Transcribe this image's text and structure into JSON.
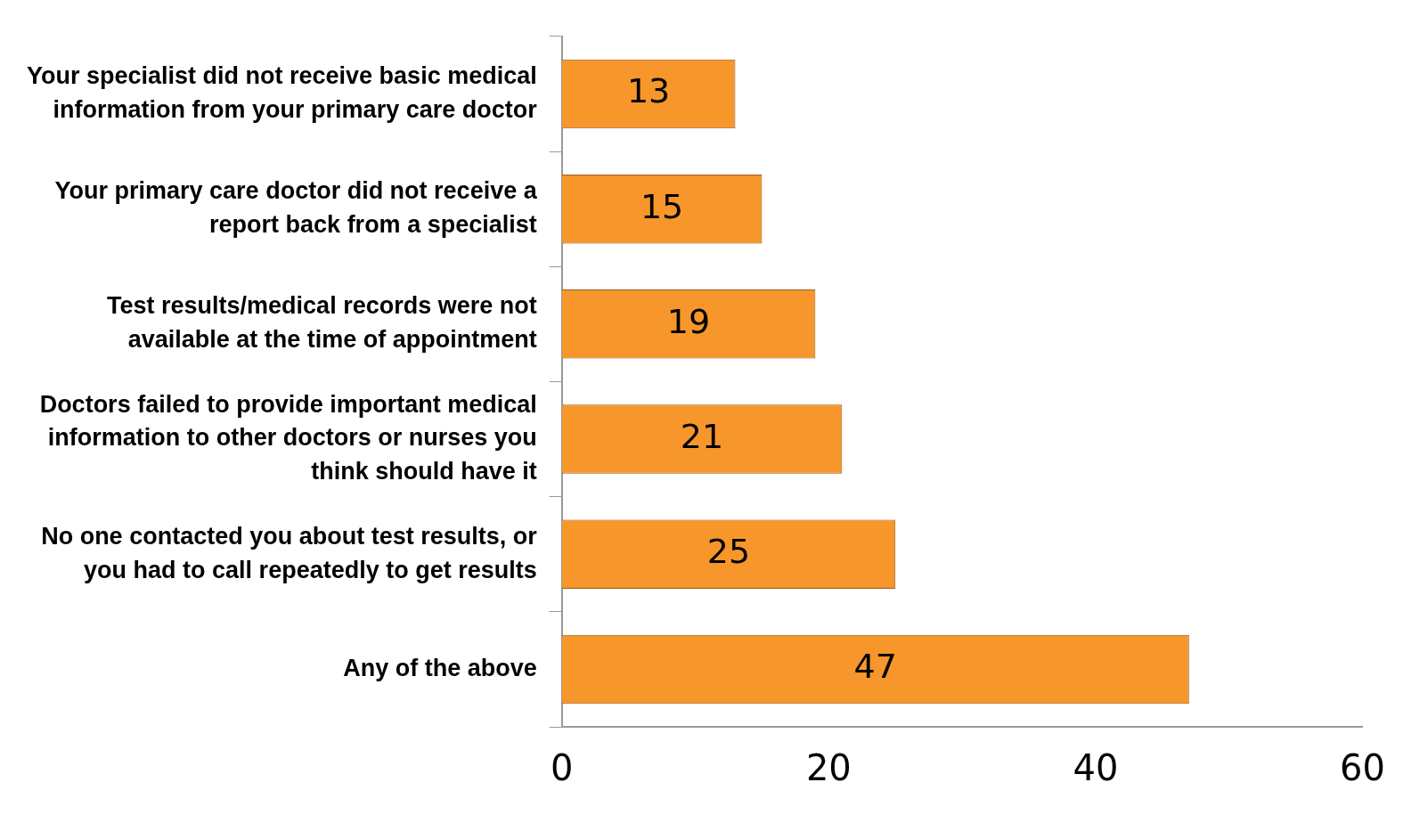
{
  "chart_data": {
    "type": "bar",
    "orientation": "horizontal",
    "categories": [
      "Your specialist did not receive basic medical information from your primary care doctor",
      "Your primary care doctor did not receive a report back from a specialist",
      "Test results/medical records were not available at the time of appointment",
      "Doctors failed to provide important medical information to other doctors or nurses you think should have it",
      "No one contacted you about test results, or you had to call repeatedly to get results",
      "Any of the above"
    ],
    "values": [
      13,
      15,
      19,
      21,
      25,
      47
    ],
    "color": "#f7962a",
    "xlim": [
      0,
      60
    ],
    "xticks": [
      0,
      20,
      40,
      60
    ],
    "data_labels": true,
    "legend": false
  }
}
